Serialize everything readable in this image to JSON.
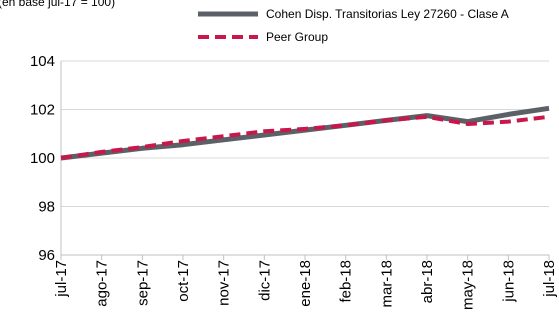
{
  "top_fragment": "(en base jul-17 = 100)",
  "chart_data": {
    "type": "line",
    "categories": [
      "jul-17",
      "ago-17",
      "sep-17",
      "oct-17",
      "nov-17",
      "dic-17",
      "ene-18",
      "feb-18",
      "mar-18",
      "abr-18",
      "may-18",
      "jun-18",
      "jul-18"
    ],
    "ylim": [
      96,
      104
    ],
    "yticks": [
      96,
      98,
      100,
      102,
      104
    ],
    "ytick_labels": [
      "96",
      "98",
      "100",
      "102",
      "104"
    ],
    "grid": true,
    "legend_position": "top-right",
    "series": [
      {
        "name": "Cohen Disp. Transitorias Ley 27260 - Clase A",
        "color": "#5b6166",
        "style": "solid",
        "values": [
          100.0,
          100.2,
          100.4,
          100.55,
          100.75,
          100.95,
          101.15,
          101.35,
          101.55,
          101.75,
          101.5,
          101.8,
          102.05
        ]
      },
      {
        "name": "Peer Group",
        "color": "#c8174a",
        "style": "dashed",
        "values": [
          100.0,
          100.25,
          100.45,
          100.7,
          100.9,
          101.1,
          101.2,
          101.35,
          101.55,
          101.7,
          101.4,
          101.5,
          101.7
        ]
      }
    ]
  }
}
